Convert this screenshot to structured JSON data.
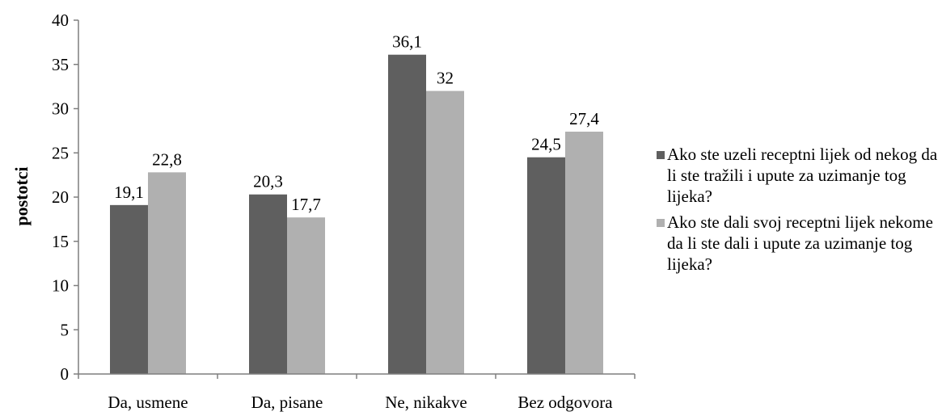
{
  "chart_data": {
    "type": "bar",
    "categories": [
      "Da, usmene",
      "Da, pisane",
      "Ne, nikakve",
      "Bez odgovora"
    ],
    "series": [
      {
        "name": "Ako ste uzeli receptni lijek od nekog da li ste tražili i upute za uzimanje tog lijeka?",
        "values": [
          19.1,
          20.3,
          36.1,
          24.5
        ],
        "labels": [
          "19,1",
          "20,3",
          "36,1",
          "24,5"
        ],
        "color": "#5f5f5f"
      },
      {
        "name": "Ako ste dali svoj receptni lijek nekome da li ste dali i upute za uzimanje tog lijeka?",
        "values": [
          22.8,
          17.7,
          32,
          27.4
        ],
        "labels": [
          "22,8",
          "17,7",
          "32",
          "27,4"
        ],
        "color": "#b0b0b0"
      }
    ],
    "xlabel": "",
    "ylabel": "postotci",
    "ylim": [
      0,
      40
    ],
    "yticks": [
      0,
      5,
      10,
      15,
      20,
      25,
      30,
      35,
      40
    ],
    "grid": false,
    "legend_position": "right"
  }
}
